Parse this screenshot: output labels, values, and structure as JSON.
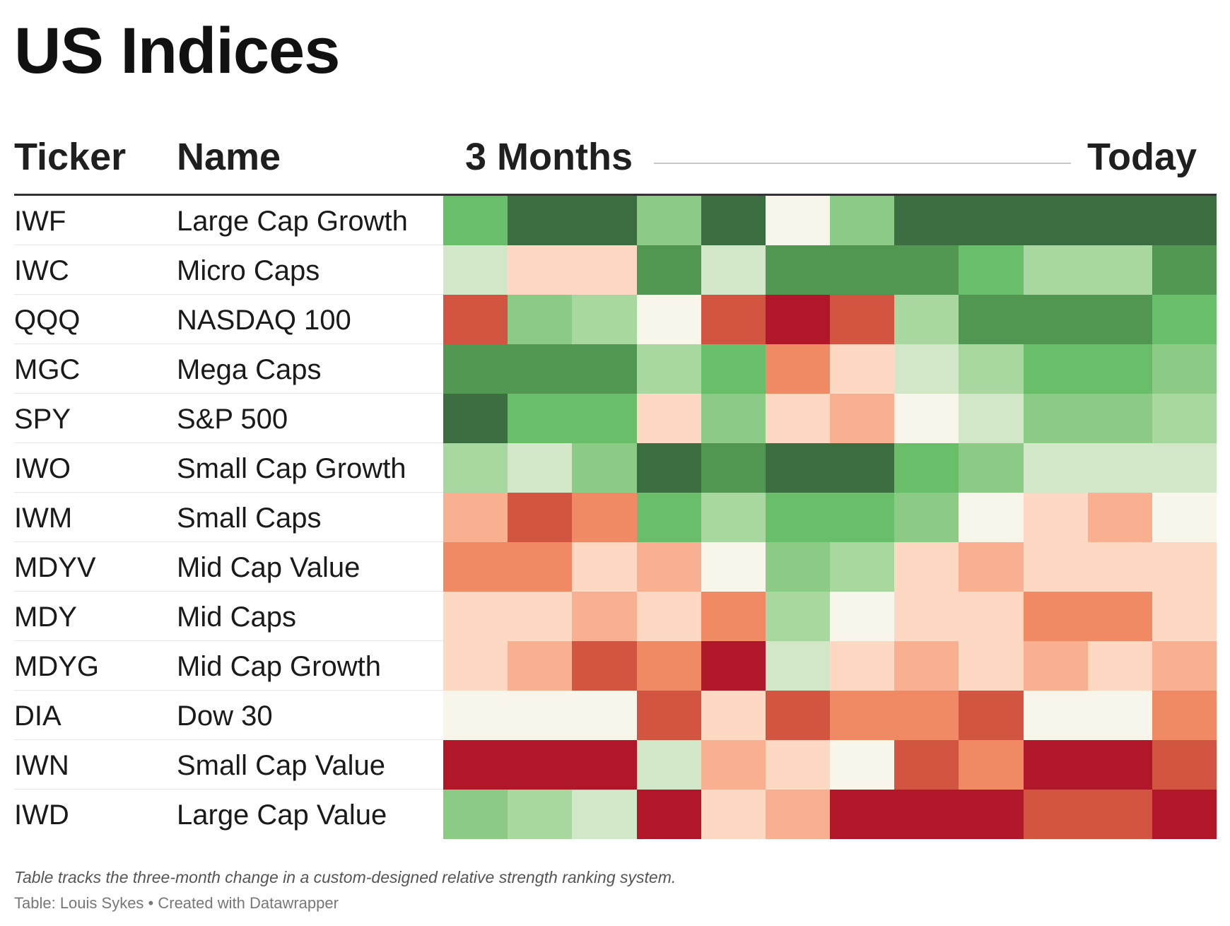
{
  "title": "US Indices",
  "headers": {
    "ticker": "Ticker",
    "name": "Name",
    "start": "3 Months",
    "end": "Today"
  },
  "note": "Table tracks the three-month change in a custom-designed relative strength ranking system.",
  "source": "Table: Louis Sykes • Created with Datawrapper",
  "palette": {
    "-5": "#b0182a",
    "-4": "#d25542",
    "-3": "#f08a64",
    "-2": "#f8b090",
    "-1": "#fdd8c3",
    "0": "#f8f6ea",
    "1": "#d2e7c8",
    "2": "#a9d7a0",
    "3": "#8bcb85",
    "4": "#69bf69",
    "5": "#519651",
    "6": "#3c6d40"
  },
  "chart_data": {
    "type": "heatmap",
    "title": "US Indices",
    "x_start_label": "3 Months",
    "x_end_label": "Today",
    "value_scale": "relative strength rank change: -5 (deep red) to 6 (dark green)",
    "rows": [
      {
        "ticker": "IWF",
        "name": "Large Cap Growth",
        "values": [
          4,
          6,
          6,
          3,
          6,
          0,
          3,
          6,
          6,
          6,
          6,
          6
        ]
      },
      {
        "ticker": "IWC",
        "name": "Micro Caps",
        "values": [
          1,
          -1,
          -1,
          5,
          1,
          5,
          5,
          5,
          4,
          2,
          2,
          5
        ]
      },
      {
        "ticker": "QQQ",
        "name": "NASDAQ 100",
        "values": [
          -4,
          3,
          2,
          0,
          -4,
          -5,
          -4,
          2,
          5,
          5,
          5,
          4
        ]
      },
      {
        "ticker": "MGC",
        "name": "Mega Caps",
        "values": [
          5,
          5,
          5,
          2,
          4,
          -3,
          -1,
          1,
          2,
          4,
          4,
          3
        ]
      },
      {
        "ticker": "SPY",
        "name": "S&P 500",
        "values": [
          6,
          4,
          4,
          -1,
          3,
          -1,
          -2,
          0,
          1,
          3,
          3,
          2
        ]
      },
      {
        "ticker": "IWO",
        "name": "Small Cap Growth",
        "values": [
          2,
          1,
          3,
          6,
          5,
          6,
          6,
          4,
          3,
          1,
          1,
          1
        ]
      },
      {
        "ticker": "IWM",
        "name": "Small Caps",
        "values": [
          -2,
          -4,
          -3,
          4,
          2,
          4,
          4,
          3,
          0,
          -1,
          -2,
          0
        ]
      },
      {
        "ticker": "MDYV",
        "name": "Mid Cap Value",
        "values": [
          -3,
          -3,
          -1,
          -2,
          0,
          3,
          2,
          -1,
          -2,
          -1,
          -1,
          -1
        ]
      },
      {
        "ticker": "MDY",
        "name": "Mid Caps",
        "values": [
          -1,
          -1,
          -2,
          -1,
          -3,
          2,
          0,
          -1,
          -1,
          -3,
          -3,
          -1
        ]
      },
      {
        "ticker": "MDYG",
        "name": "Mid Cap Growth",
        "values": [
          -1,
          -2,
          -4,
          -3,
          -5,
          1,
          -1,
          -2,
          -1,
          -2,
          -1,
          -2
        ]
      },
      {
        "ticker": "DIA",
        "name": "Dow 30",
        "values": [
          0,
          0,
          0,
          -4,
          -1,
          -4,
          -3,
          -3,
          -4,
          0,
          0,
          -3
        ]
      },
      {
        "ticker": "IWN",
        "name": "Small Cap Value",
        "values": [
          -5,
          -5,
          -5,
          1,
          -2,
          -1,
          0,
          -4,
          -3,
          -5,
          -5,
          -4
        ]
      },
      {
        "ticker": "IWD",
        "name": "Large Cap Value",
        "values": [
          3,
          2,
          1,
          -5,
          -1,
          -2,
          -5,
          -5,
          -5,
          -4,
          -4,
          -5
        ]
      }
    ]
  }
}
